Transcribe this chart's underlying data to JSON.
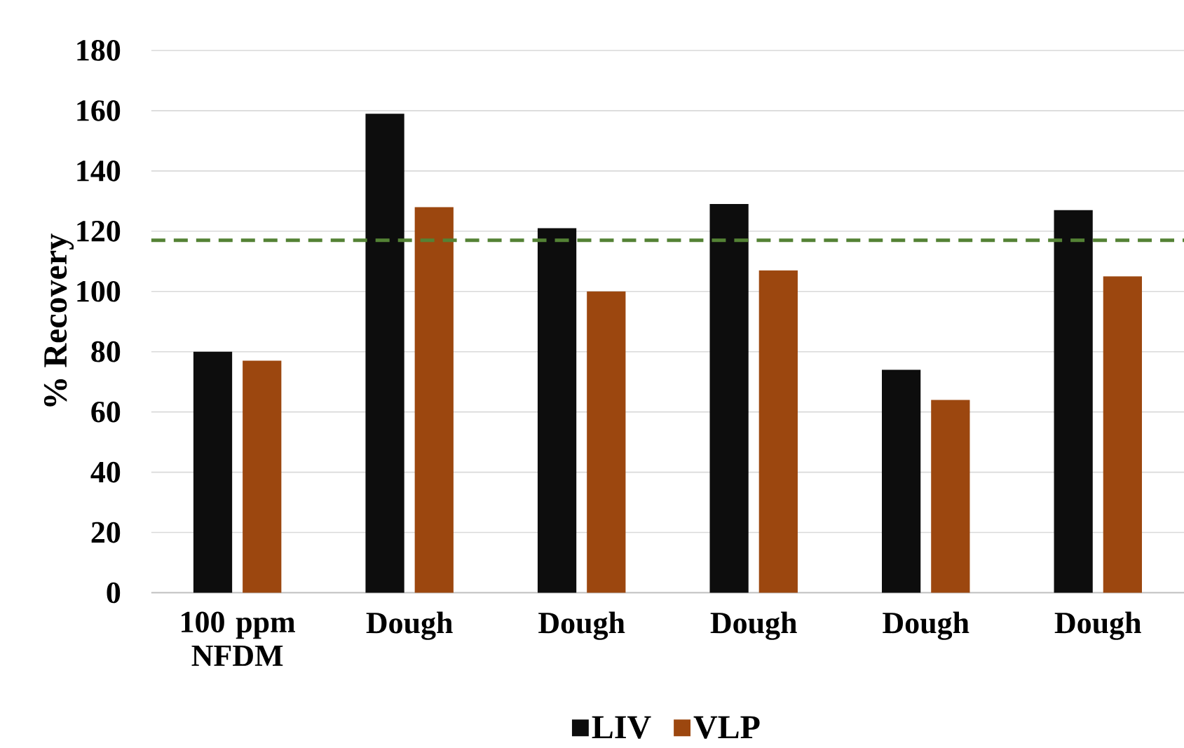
{
  "chart_data": {
    "type": "bar",
    "ylabel": "% Recovery",
    "categories": [
      "100 ppm NFDM",
      "Dough",
      "Dough",
      "Dough",
      "Dough",
      "Dough"
    ],
    "series": [
      {
        "name": "LIV",
        "color": "#0d0d0d",
        "values": [
          80,
          159,
          121,
          129,
          74,
          127
        ]
      },
      {
        "name": "VLP",
        "color": "#9c470f",
        "values": [
          77,
          128,
          100,
          107,
          64,
          105
        ]
      }
    ],
    "ylim": [
      0,
      180
    ],
    "yticks": [
      0,
      20,
      40,
      60,
      80,
      100,
      120,
      140,
      160,
      180
    ],
    "grid": "y",
    "legend": "bottom",
    "ref_lines": [
      {
        "axis": "y",
        "value": 117,
        "color": "#548235",
        "line_style": "dashed"
      }
    ]
  }
}
